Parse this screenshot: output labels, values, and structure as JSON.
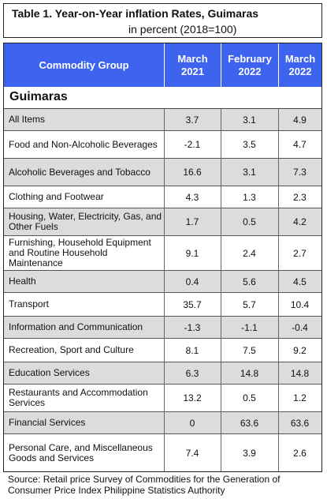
{
  "title": {
    "line1": "Table 1. Year-on-Year inflation  Rates, Guimaras",
    "line2": "in percent (2018=100)"
  },
  "header": {
    "commodity_group": "Commodity  Group",
    "col1": [
      "March",
      "2021"
    ],
    "col2": [
      "February",
      "2022"
    ],
    "col3": [
      "March",
      "2022"
    ]
  },
  "region": "Guimaras",
  "rows": [
    {
      "label": "All Items",
      "values": [
        "3.7",
        "3.1",
        "4.9"
      ]
    },
    {
      "label": "Food and Non-Alcoholic Beverages",
      "values": [
        "-2.1",
        "3.5",
        "4.7"
      ]
    },
    {
      "label": "Alcoholic Beverages and Tobacco",
      "values": [
        "16.6",
        "3.1",
        "7.3"
      ]
    },
    {
      "label": "Clothing and Footwear",
      "values": [
        "4.3",
        "1.3",
        "2.3"
      ]
    },
    {
      "label": "Housing, Water, Electricity, Gas, and Other Fuels",
      "values": [
        "1.7",
        "0.5",
        "4.2"
      ]
    },
    {
      "label": "Furnishing, Household Equipment and Routine Household Maintenance",
      "values": [
        "9.1",
        "2.4",
        "2.7"
      ]
    },
    {
      "label": "Health",
      "values": [
        "0.4",
        "5.6",
        "4.5"
      ]
    },
    {
      "label": "Transport",
      "values": [
        "35.7",
        "5.7",
        "10.4"
      ]
    },
    {
      "label": "Information and Communication",
      "values": [
        "-1.3",
        "-1.1",
        "-0.4"
      ]
    },
    {
      "label": "Recreation, Sport and Culture",
      "values": [
        "8.1",
        "7.5",
        "9.2"
      ]
    },
    {
      "label": "Education Services",
      "values": [
        "6.3",
        "14.8",
        "14.8"
      ]
    },
    {
      "label": "Restaurants and Accommodation Services",
      "values": [
        "13.2",
        "0.5",
        "1.2"
      ]
    },
    {
      "label": "Financial Services",
      "values": [
        "0",
        "63.6",
        "63.6"
      ]
    },
    {
      "label": "Personal Care, and Miscellaneous Goods and Services",
      "values": [
        "7.4",
        "3.9",
        "2.6"
      ]
    }
  ],
  "source": "Source: Retail price Survey of Commodities for the Generation of Consumer Price Index Philippine Statistics Authority",
  "colors": {
    "header_bg": "#3e63ee",
    "row_shaded": "#dcdcdc"
  }
}
